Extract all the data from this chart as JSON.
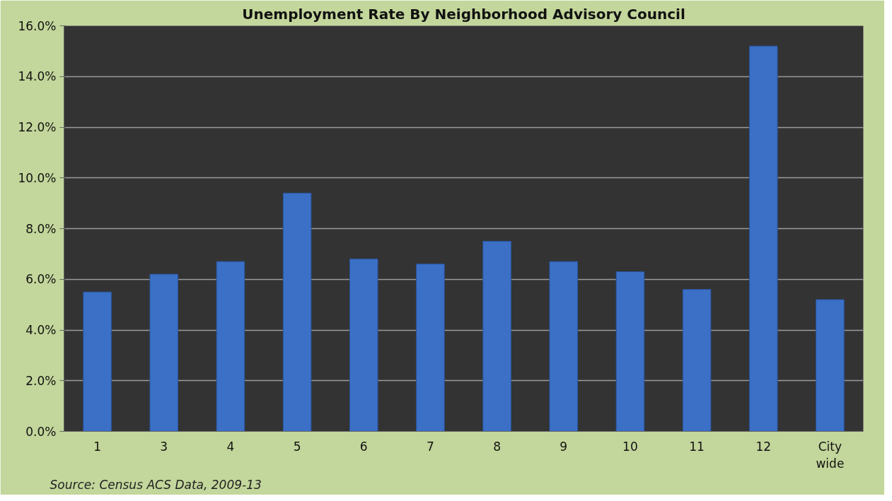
{
  "chart_data": {
    "type": "bar",
    "title": "Unemployment Rate By Neighborhood Advisory Council",
    "categories": [
      "1",
      "3",
      "4",
      "5",
      "6",
      "7",
      "8",
      "9",
      "10",
      "11",
      "12",
      "City wide"
    ],
    "values": [
      5.5,
      6.2,
      6.7,
      9.4,
      6.8,
      6.6,
      7.5,
      6.7,
      6.3,
      5.6,
      15.2,
      5.2
    ],
    "color": "#3b70c6",
    "ylim": [
      0,
      16
    ],
    "yticks": [
      {
        "value": 0,
        "label": "0.0%"
      },
      {
        "value": 2,
        "label": "2.0%"
      },
      {
        "value": 4,
        "label": "4.0%"
      },
      {
        "value": 6,
        "label": "6.0%"
      },
      {
        "value": 8,
        "label": "8.0%"
      },
      {
        "value": 10,
        "label": "10.0%"
      },
      {
        "value": 12,
        "label": "12.0%"
      },
      {
        "value": 14,
        "label": "14.0%"
      },
      {
        "value": 16,
        "label": "16.0%"
      }
    ],
    "grid": "y",
    "annotations": [
      "Source:  Census ACS Data, 2009-13"
    ]
  }
}
